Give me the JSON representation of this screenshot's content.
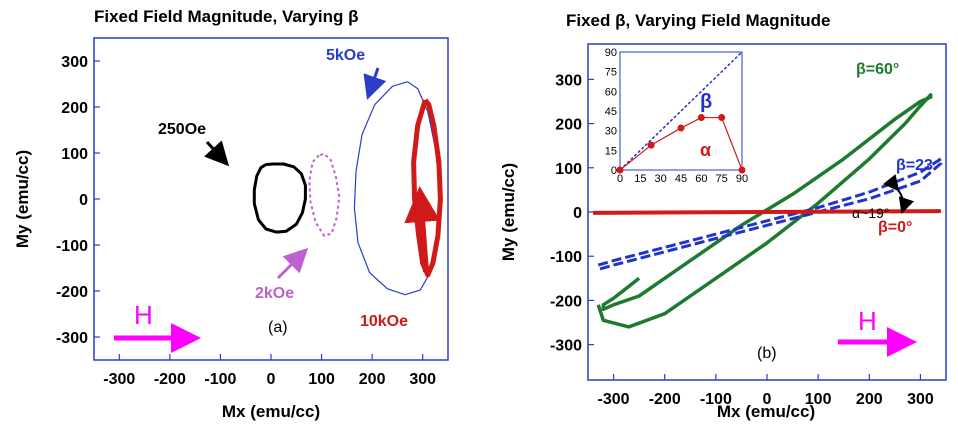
{
  "chart_data": [
    {
      "type": "line",
      "title": "Fixed Field Magnitude, Varying β",
      "xlabel": "Mx (emu/cc)",
      "ylabel": "My (emu/cc)",
      "xlim": [
        -350,
        350
      ],
      "ylim": [
        -350,
        350
      ],
      "xticks": [
        -300,
        -200,
        -100,
        0,
        100,
        200,
        300
      ],
      "yticks": [
        -300,
        -200,
        -100,
        0,
        100,
        200,
        300
      ],
      "panel_label": "(a)",
      "field_label": "H",
      "grid": false,
      "series": [
        {
          "name": "250Oe",
          "color": "#000000",
          "x": [
            -10,
            -20,
            -28,
            -33,
            -33,
            -25,
            -10,
            10,
            30,
            50,
            62,
            68,
            68,
            60,
            45,
            25,
            5
          ],
          "y": [
            75,
            68,
            50,
            20,
            -10,
            -45,
            -65,
            -72,
            -70,
            -55,
            -30,
            0,
            30,
            55,
            70,
            76,
            76
          ]
        },
        {
          "name": "2kOe",
          "color": "#c060d0",
          "x": [
            95,
            82,
            76,
            78,
            88,
            105,
            120,
            130,
            135,
            128,
            118,
            105
          ],
          "y": [
            95,
            80,
            40,
            -5,
            -50,
            -80,
            -75,
            -40,
            5,
            50,
            85,
            98
          ]
        },
        {
          "name": "5kOe",
          "color": "#2a3cc8",
          "x": [
            270,
            240,
            205,
            180,
            168,
            165,
            172,
            195,
            230,
            265,
            295,
            315,
            330,
            335,
            325,
            310,
            290
          ],
          "y": [
            255,
            245,
            205,
            140,
            60,
            -20,
            -95,
            -160,
            -195,
            -208,
            -198,
            -160,
            -90,
            10,
            110,
            190,
            240
          ]
        },
        {
          "name": "10kOe",
          "color": "#d01a1a",
          "x": [
            305,
            290,
            282,
            284,
            292,
            300,
            310,
            320,
            330,
            335,
            332,
            322,
            312
          ],
          "y": [
            215,
            160,
            80,
            0,
            -80,
            -140,
            -165,
            -140,
            -80,
            0,
            80,
            160,
            205
          ]
        }
      ],
      "annotations": [
        "250Oe",
        "2kOe",
        "5kOe",
        "10kOe"
      ]
    },
    {
      "type": "line",
      "title": "Fixed β, Varying Field Magnitude",
      "xlabel": "Mx (emu/cc)",
      "ylabel": "My (emu/cc)",
      "xlim": [
        -350,
        350
      ],
      "ylim": [
        -380,
        380
      ],
      "xticks": [
        -300,
        -200,
        -100,
        0,
        100,
        200,
        300
      ],
      "yticks": [
        -300,
        -200,
        -100,
        0,
        100,
        200,
        300
      ],
      "panel_label": "(b)",
      "field_label": "H",
      "grid": false,
      "series": [
        {
          "name": "β=60°",
          "color": "#1e7a2e",
          "x": [
            -330,
            -320,
            -270,
            -200,
            -100,
            0,
            100,
            200,
            270,
            300,
            320,
            320,
            300,
            250,
            150,
            50,
            -50,
            -150,
            -250,
            -300,
            -320,
            -320,
            -300,
            -250
          ],
          "y": [
            -210,
            -245,
            -260,
            -230,
            -150,
            -70,
            20,
            120,
            200,
            240,
            265,
            260,
            250,
            210,
            120,
            40,
            -30,
            -110,
            -190,
            -210,
            -220,
            -210,
            -195,
            -150
          ]
        },
        {
          "name": "β=23",
          "color": "#2233cc",
          "x": [
            -330,
            -300,
            -200,
            -100,
            0,
            100,
            200,
            300,
            340,
            340,
            300,
            200,
            100,
            0,
            -100,
            -200,
            -300,
            -330
          ],
          "y": [
            -120,
            -110,
            -80,
            -50,
            -20,
            10,
            45,
            90,
            120,
            110,
            70,
            30,
            0,
            -30,
            -60,
            -90,
            -120,
            -130
          ]
        },
        {
          "name": "β=0°",
          "color": "#d01a1a",
          "x": [
            -340,
            340
          ],
          "y": [
            -2,
            2
          ]
        }
      ],
      "annotations": [
        "β=60°",
        "β=23",
        "α~19°",
        "β=0°"
      ],
      "inset": {
        "type": "line",
        "xlim": [
          0,
          90
        ],
        "ylim": [
          0,
          90
        ],
        "xticks": [
          0,
          15,
          30,
          45,
          60,
          75,
          90
        ],
        "yticks": [
          0,
          15,
          30,
          45,
          60,
          75,
          90
        ],
        "series": [
          {
            "name": "β",
            "color": "#2233cc",
            "style": "dashed",
            "x": [
              0,
              90
            ],
            "y": [
              0,
              90
            ]
          },
          {
            "name": "α",
            "color": "#d01a1a",
            "style": "markers",
            "x": [
              0,
              23,
              45,
              60,
              75,
              90
            ],
            "y": [
              0,
              19,
              32,
              40,
              40,
              0
            ]
          }
        ]
      }
    }
  ]
}
